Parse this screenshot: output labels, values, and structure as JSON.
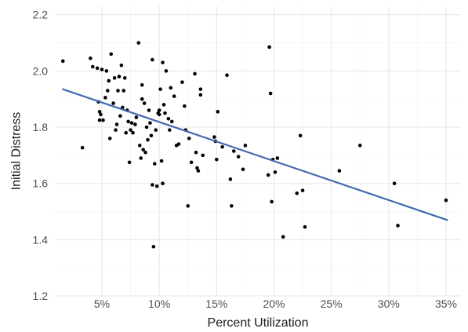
{
  "chart_data": {
    "type": "scatter",
    "title": "",
    "xlabel": "Percent Utilization",
    "ylabel": "Initial Distress",
    "xlim": [
      0.9,
      36.3
    ],
    "ylim": [
      1.2,
      2.23
    ],
    "x_ticks": [
      {
        "value": 5,
        "label": "5%"
      },
      {
        "value": 10,
        "label": "10%"
      },
      {
        "value": 15,
        "label": "15%"
      },
      {
        "value": 20,
        "label": "20%"
      },
      {
        "value": 25,
        "label": "25%"
      },
      {
        "value": 30,
        "label": "30%"
      },
      {
        "value": 35,
        "label": "35%"
      }
    ],
    "y_ticks": [
      {
        "value": 1.2,
        "label": "1.2"
      },
      {
        "value": 1.4,
        "label": "1.4"
      },
      {
        "value": 1.6,
        "label": "1.6"
      },
      {
        "value": 1.8,
        "label": "1.8"
      },
      {
        "value": 2.0,
        "label": "2.0"
      },
      {
        "value": 2.2,
        "label": "2.2"
      }
    ],
    "grid": true,
    "legend": "none",
    "colors": {
      "points": "#000000",
      "fit_line": "#4169b0"
    },
    "fit_line": {
      "x": [
        1.6,
        35.1
      ],
      "y": [
        1.935,
        1.47
      ]
    },
    "points": [
      [
        1.6,
        2.035
      ],
      [
        3.3,
        1.727
      ],
      [
        4.0,
        2.045
      ],
      [
        4.2,
        2.015
      ],
      [
        4.6,
        2.01
      ],
      [
        4.7,
        1.89
      ],
      [
        4.8,
        1.825
      ],
      [
        4.8,
        1.855
      ],
      [
        4.9,
        1.845
      ],
      [
        5.0,
        2.005
      ],
      [
        5.1,
        1.825
      ],
      [
        5.3,
        1.905
      ],
      [
        5.4,
        2.0
      ],
      [
        5.5,
        1.93
      ],
      [
        5.6,
        1.965
      ],
      [
        5.7,
        1.76
      ],
      [
        5.8,
        2.06
      ],
      [
        6.0,
        1.885
      ],
      [
        6.1,
        1.975
      ],
      [
        6.2,
        1.79
      ],
      [
        6.3,
        1.81
      ],
      [
        6.4,
        1.93
      ],
      [
        6.5,
        1.98
      ],
      [
        6.6,
        1.84
      ],
      [
        6.7,
        2.02
      ],
      [
        6.8,
        1.87
      ],
      [
        6.9,
        1.93
      ],
      [
        7.0,
        1.975
      ],
      [
        7.1,
        1.78
      ],
      [
        7.2,
        1.86
      ],
      [
        7.3,
        1.82
      ],
      [
        7.4,
        1.675
      ],
      [
        7.5,
        1.79
      ],
      [
        7.6,
        1.815
      ],
      [
        7.7,
        1.78
      ],
      [
        7.9,
        1.81
      ],
      [
        8.0,
        1.835
      ],
      [
        8.2,
        2.1
      ],
      [
        8.3,
        1.735
      ],
      [
        8.4,
        1.69
      ],
      [
        8.5,
        1.9
      ],
      [
        8.5,
        1.95
      ],
      [
        8.6,
        1.72
      ],
      [
        8.7,
        1.885
      ],
      [
        8.8,
        1.71
      ],
      [
        8.9,
        1.8
      ],
      [
        9.0,
        1.755
      ],
      [
        9.1,
        1.86
      ],
      [
        9.2,
        1.815
      ],
      [
        9.3,
        1.77
      ],
      [
        9.4,
        1.595
      ],
      [
        9.4,
        2.04
      ],
      [
        9.5,
        1.375
      ],
      [
        9.6,
        1.67
      ],
      [
        9.7,
        1.79
      ],
      [
        9.8,
        1.59
      ],
      [
        9.9,
        1.85
      ],
      [
        10.0,
        1.86
      ],
      [
        10.0,
        1.845
      ],
      [
        10.1,
        1.935
      ],
      [
        10.2,
        1.68
      ],
      [
        10.3,
        2.03
      ],
      [
        10.3,
        1.6
      ],
      [
        10.4,
        1.88
      ],
      [
        10.5,
        1.85
      ],
      [
        10.6,
        2.0
      ],
      [
        10.8,
        1.83
      ],
      [
        10.9,
        1.79
      ],
      [
        11.0,
        1.94
      ],
      [
        11.1,
        1.82
      ],
      [
        11.3,
        1.91
      ],
      [
        11.5,
        1.735
      ],
      [
        11.7,
        1.74
      ],
      [
        12.0,
        1.96
      ],
      [
        12.2,
        1.875
      ],
      [
        12.3,
        1.79
      ],
      [
        12.5,
        1.52
      ],
      [
        12.6,
        1.76
      ],
      [
        12.8,
        1.675
      ],
      [
        13.1,
        1.99
      ],
      [
        13.2,
        1.71
      ],
      [
        13.3,
        1.655
      ],
      [
        13.4,
        1.645
      ],
      [
        13.6,
        1.915
      ],
      [
        13.6,
        1.935
      ],
      [
        13.8,
        1.7
      ],
      [
        14.8,
        1.765
      ],
      [
        14.9,
        1.75
      ],
      [
        15.0,
        1.685
      ],
      [
        15.1,
        1.855
      ],
      [
        15.5,
        1.73
      ],
      [
        15.9,
        1.985
      ],
      [
        16.2,
        1.615
      ],
      [
        16.3,
        1.52
      ],
      [
        16.5,
        1.715
      ],
      [
        16.9,
        1.695
      ],
      [
        17.3,
        1.65
      ],
      [
        17.5,
        1.735
      ],
      [
        19.5,
        1.63
      ],
      [
        19.6,
        2.085
      ],
      [
        19.7,
        1.92
      ],
      [
        19.8,
        1.535
      ],
      [
        19.9,
        1.685
      ],
      [
        20.1,
        1.64
      ],
      [
        20.3,
        1.69
      ],
      [
        20.8,
        1.41
      ],
      [
        22.0,
        1.565
      ],
      [
        22.3,
        1.77
      ],
      [
        22.5,
        1.575
      ],
      [
        22.7,
        1.445
      ],
      [
        25.7,
        1.645
      ],
      [
        27.5,
        1.735
      ],
      [
        30.5,
        1.6
      ],
      [
        30.8,
        1.45
      ],
      [
        35.0,
        1.54
      ]
    ]
  }
}
